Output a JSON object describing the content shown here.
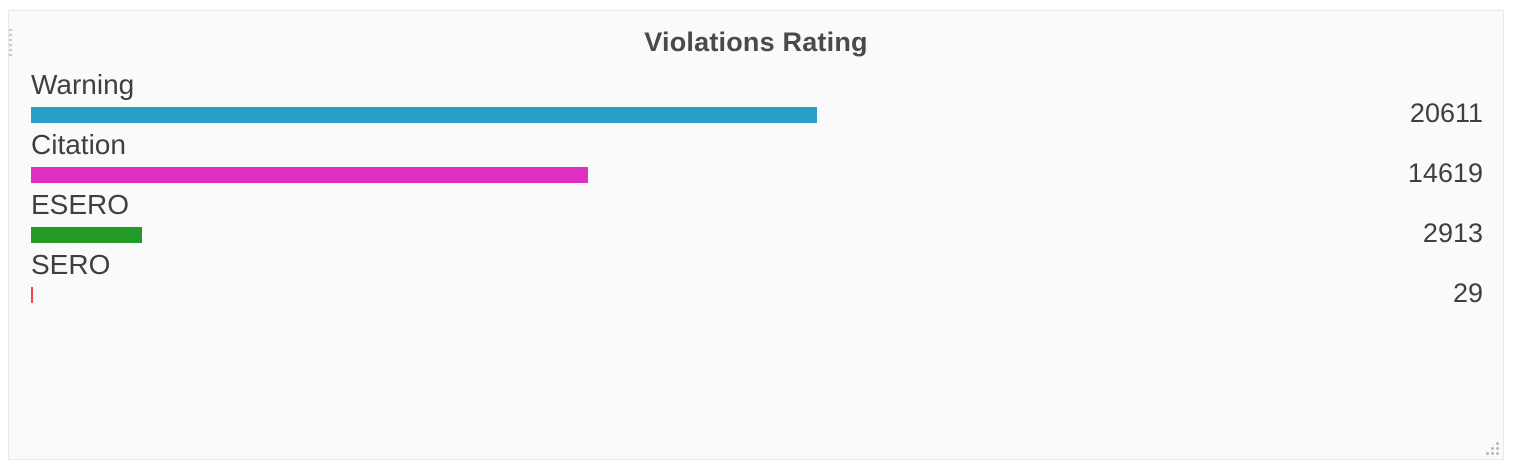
{
  "panel": {
    "title": "Violations Rating"
  },
  "chart_data": {
    "type": "bar",
    "orientation": "horizontal",
    "title": "Violations Rating",
    "categories": [
      "Warning",
      "Citation",
      "ESERO",
      "SERO"
    ],
    "values": [
      20611,
      14619,
      2913,
      29
    ],
    "value_labels": [
      "20611",
      "14619",
      "2913",
      "29"
    ],
    "colors": [
      "#299fc7",
      "#de2fc0",
      "#249a28",
      "#e8474f"
    ],
    "xlim": [
      0,
      29650
    ],
    "grid": false,
    "legend": "none"
  }
}
